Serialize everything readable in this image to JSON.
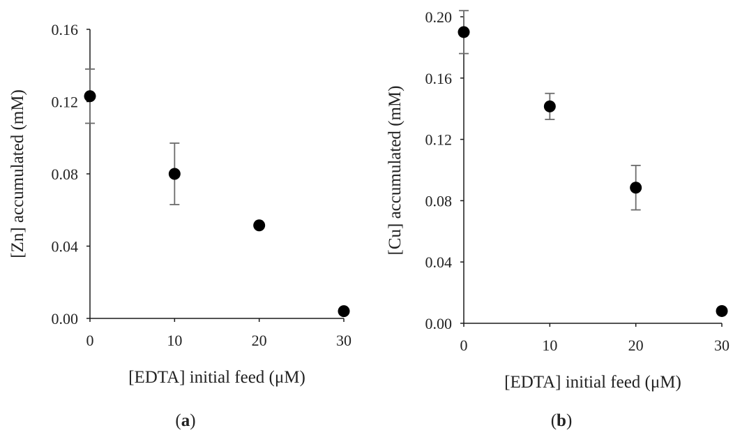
{
  "chart_data": [
    {
      "panel_label_prefix": "(",
      "panel_label": "a",
      "panel_label_suffix": ")",
      "type": "scatter",
      "xlabel": "[EDTA] initial feed (μM)",
      "ylabel": "[Zn] accumulated (mM)",
      "xlim": [
        0,
        30
      ],
      "ylim": [
        0,
        0.16
      ],
      "xticks": [
        "0",
        "10",
        "20",
        "30"
      ],
      "yticks": [
        "0.00",
        "0.04",
        "0.08",
        "0.12",
        "0.16"
      ],
      "points": [
        {
          "x": 0,
          "y": 0.123,
          "err": 0.015
        },
        {
          "x": 10,
          "y": 0.08,
          "err": 0.017
        },
        {
          "x": 20,
          "y": 0.0515,
          "err": 0
        },
        {
          "x": 30,
          "y": 0.004,
          "err": 0
        }
      ],
      "marker_color": "#000000",
      "errorbar_color": "#6b6b6b"
    },
    {
      "panel_label_prefix": "(",
      "panel_label": "b",
      "panel_label_suffix": ")",
      "type": "scatter",
      "xlabel": "[EDTA] initial feed (μM)",
      "ylabel": "[Cu] accumulated (mM)",
      "xlim": [
        0,
        30
      ],
      "ylim": [
        0,
        0.2
      ],
      "xticks": [
        "0",
        "10",
        "20",
        "30"
      ],
      "yticks": [
        "0.00",
        "0.04",
        "0.08",
        "0.12",
        "0.16",
        "0.20"
      ],
      "points": [
        {
          "x": 0,
          "y": 0.19,
          "err": 0.014
        },
        {
          "x": 10,
          "y": 0.1415,
          "err": 0.0085
        },
        {
          "x": 20,
          "y": 0.0885,
          "err": 0.0145
        },
        {
          "x": 30,
          "y": 0.008,
          "err": 0
        }
      ],
      "marker_color": "#000000",
      "errorbar_color": "#6b6b6b"
    }
  ]
}
